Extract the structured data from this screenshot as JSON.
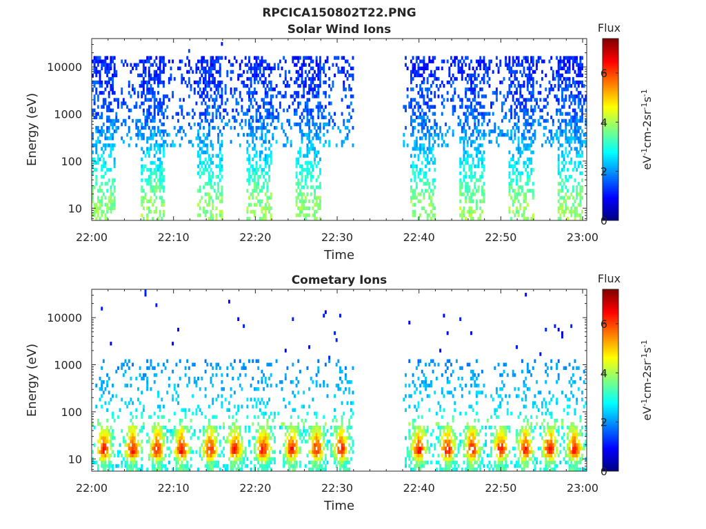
{
  "figure": {
    "filename": "RPCICA150802T22.PNG"
  },
  "chart_data": [
    {
      "type": "heatmap",
      "title": "Solar Wind Ions",
      "xlabel": "Time",
      "ylabel": "Energy (eV)",
      "x_ticks": [
        "22:00",
        "22:10",
        "22:20",
        "22:30",
        "22:40",
        "22:50",
        "23:00"
      ],
      "x_range_minutes": [
        0,
        60.5
      ],
      "y_scale": "log",
      "y_range": [
        5.5,
        40000
      ],
      "y_ticks": [
        10,
        100,
        1000,
        10000
      ],
      "y_tick_labels": [
        "10",
        "100",
        "1000",
        "10000"
      ],
      "colorbar": {
        "label": "Flux",
        "unit_label": "eV-1cm-2sr-1s-1",
        "range": [
          0,
          7.4
        ],
        "ticks": [
          "0",
          "2",
          "4",
          "6"
        ],
        "colormap": "jet"
      },
      "bursts": [
        {
          "start": "22:00",
          "end": "22:03"
        },
        {
          "start": "22:06",
          "end": "22:09"
        },
        {
          "start": "22:13",
          "end": "22:16"
        },
        {
          "start": "22:19",
          "end": "22:22"
        },
        {
          "start": "22:25",
          "end": "22:28"
        },
        {
          "start": "22:39",
          "end": "22:42"
        },
        {
          "start": "22:45",
          "end": "22:48"
        },
        {
          "start": "22:51",
          "end": "22:54"
        },
        {
          "start": "22:57",
          "end": "23:00"
        }
      ],
      "data_gap": {
        "start": "22:32",
        "end": "22:38"
      },
      "flux_profile": [
        {
          "energy_eV": 10,
          "flux": 3.8
        },
        {
          "energy_eV": 20,
          "flux": 3.6
        },
        {
          "energy_eV": 100,
          "flux": 2.6
        },
        {
          "energy_eV": 1000,
          "flux": 1.6
        },
        {
          "energy_eV": 10000,
          "flux": 1.2
        }
      ]
    },
    {
      "type": "heatmap",
      "title": "Cometary Ions",
      "xlabel": "Time",
      "ylabel": "Energy (eV)",
      "x_ticks": [
        "22:00",
        "22:10",
        "22:20",
        "22:30",
        "22:40",
        "22:50",
        "23:00"
      ],
      "x_range_minutes": [
        0,
        60.5
      ],
      "y_scale": "log",
      "y_range": [
        5.5,
        40000
      ],
      "y_ticks": [
        10,
        100,
        1000,
        10000
      ],
      "y_tick_labels": [
        "10",
        "100",
        "1000",
        "10000"
      ],
      "colorbar": {
        "label": "Flux",
        "unit_label": "eV-1cm-2sr-1s-1",
        "range": [
          0,
          7.4
        ],
        "ticks": [
          "0",
          "2",
          "4",
          "6"
        ],
        "colormap": "jet"
      },
      "peak_times": [
        "22:01.5",
        "22:05",
        "22:08",
        "22:11",
        "22:14.5",
        "22:17.5",
        "22:21",
        "22:24.5",
        "22:27.5",
        "22:30.5",
        "22:40",
        "22:43.5",
        "22:46.5",
        "22:50",
        "22:53",
        "22:56",
        "22:59"
      ],
      "data_gap": {
        "start": "22:32",
        "end": "22:38"
      },
      "flux_profile": [
        {
          "energy_eV": 8,
          "flux": 3.5
        },
        {
          "energy_eV": 15,
          "flux": 6.5
        },
        {
          "energy_eV": 30,
          "flux": 5.0
        },
        {
          "energy_eV": 100,
          "flux": 2.6
        },
        {
          "energy_eV": 1000,
          "flux": 2.0
        },
        {
          "energy_eV": 8000,
          "flux": 1.0
        }
      ]
    }
  ]
}
